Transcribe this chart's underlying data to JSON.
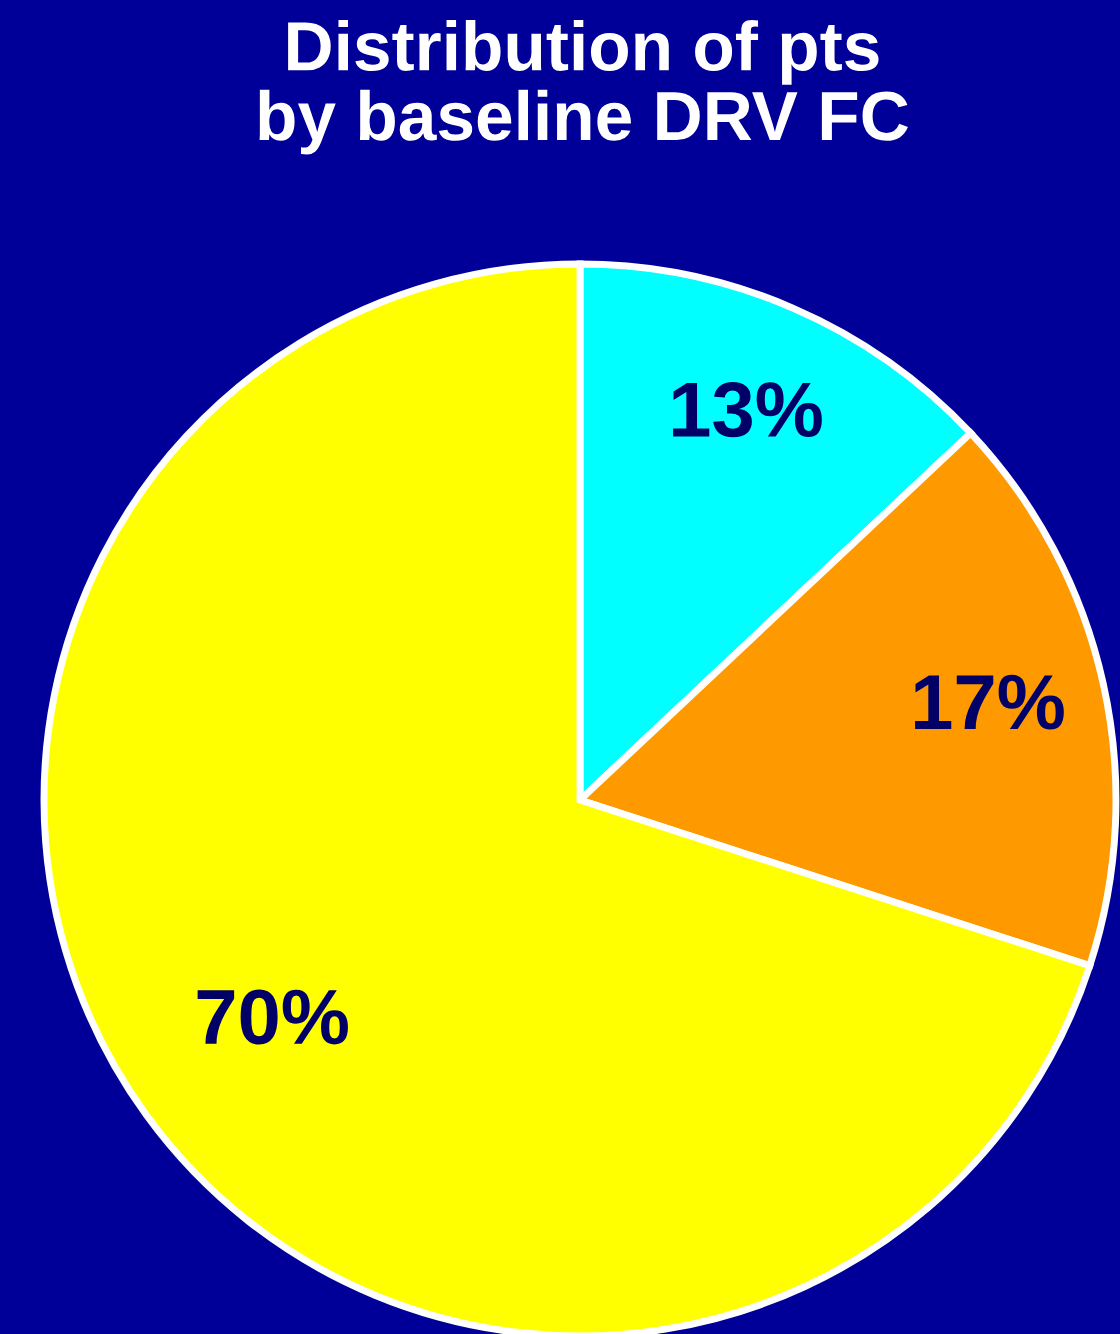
{
  "chart_data": {
    "type": "pie",
    "title": "Distribution of pts\nby baseline DRV FC",
    "categories": [
      null,
      null,
      null
    ],
    "values": [
      13,
      17,
      70
    ],
    "colors": [
      "#00ffff",
      "#ff9900",
      "#ffff00"
    ],
    "value_labels": [
      "13%",
      "17%",
      "70%"
    ]
  }
}
